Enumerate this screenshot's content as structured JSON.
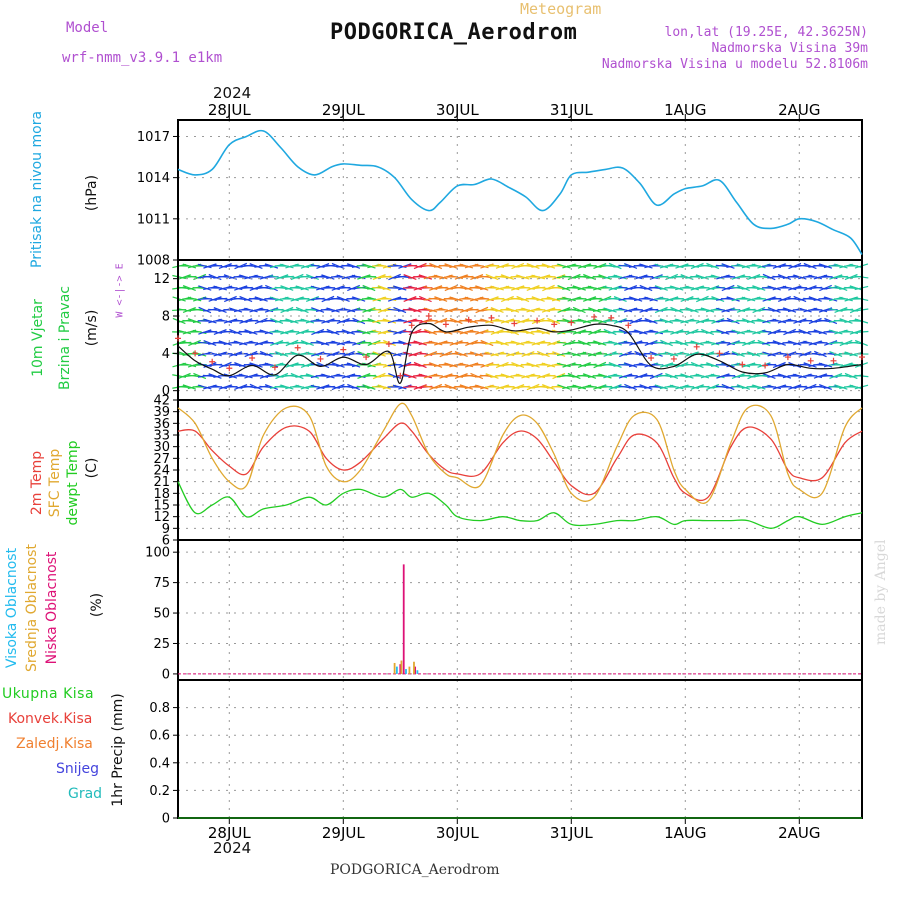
{
  "header": {
    "model_label": "Model",
    "model_name": "wrf-nmm_v3.9.1  e1km",
    "meteogram_label": "Meteogram",
    "station_title": "PODGORICA_Aerodrom",
    "lonlat": "lon,lat (19.25E, 42.3625N)",
    "altitude": "Nadmorska Visina 39m",
    "model_altitude": "Nadmorska Visina u modelu 52.8106m",
    "footer_station": "PODGORICA_Aerodrom",
    "credit": "made by Angel",
    "year": "2024"
  },
  "colors": {
    "pressure": "#1fa8e0",
    "temp2m": "#e8403a",
    "sfc_temp": "#e0a830",
    "dewpt": "#22cc22",
    "high_cloud": "#22bbee",
    "mid_cloud": "#e0a830",
    "low_cloud": "#dd1177",
    "model_text": "#b050d0"
  },
  "time_axis": {
    "start_day": 27.55,
    "end_day": 33.55,
    "labels": [
      {
        "t": 28.0,
        "label": "28JUL"
      },
      {
        "t": 29.0,
        "label": "29JUL"
      },
      {
        "t": 30.0,
        "label": "30JUL"
      },
      {
        "t": 31.0,
        "label": "31JUL"
      },
      {
        "t": 32.0,
        "label": "1AUG"
      },
      {
        "t": 33.0,
        "label": "2AUG"
      }
    ]
  },
  "panels": {
    "pressure": {
      "ylabel_1": "Pritisak na nivou mora",
      "unit": "(hPa)"
    },
    "wind": {
      "ylabel_1": "10m Vjetar",
      "ylabel_2": "Brzina i Pravac",
      "unit": "(m/s)",
      "compass": "W <-|-> E"
    },
    "temp": {
      "ylabel_1": "2m Temp",
      "ylabel_2": "SFC Temp",
      "ylabel_3": "dewpt Temp",
      "unit": "(C)"
    },
    "cloud": {
      "ylabel_1": "Visoka Oblacnost",
      "ylabel_2": "Srednja Oblacnost",
      "ylabel_3": "Niska Oblacnost",
      "unit": "(%)"
    },
    "precip": {
      "legend": [
        "Ukupna Kisa",
        "Konvek.Kisa",
        "Zaledj.Kisa",
        "Snijeg",
        "Grad"
      ],
      "legend_colors": [
        "#22cc22",
        "#e8403a",
        "#f08030",
        "#4444dd",
        "#22bbbb"
      ],
      "ylabel": "1hr Precip (mm)"
    }
  },
  "chart_data": [
    {
      "type": "line",
      "title": "Pritisak na nivou mora",
      "ylabel": "(hPa)",
      "ylim": [
        1008,
        1018.2
      ],
      "yticks": [
        1008,
        1011,
        1014,
        1017
      ],
      "grid": true,
      "x": [
        27.55,
        27.7,
        27.85,
        28.0,
        28.15,
        28.3,
        28.45,
        28.6,
        28.75,
        28.9,
        29.0,
        29.15,
        29.3,
        29.45,
        29.6,
        29.75,
        29.85,
        30.0,
        30.15,
        30.3,
        30.45,
        30.6,
        30.75,
        30.9,
        31.0,
        31.15,
        31.3,
        31.45,
        31.6,
        31.75,
        31.9,
        32.0,
        32.15,
        32.3,
        32.45,
        32.6,
        32.75,
        32.9,
        33.0,
        33.15,
        33.3,
        33.45,
        33.55
      ],
      "series": [
        {
          "values": [
            1014.6,
            1014.2,
            1014.6,
            1016.4,
            1017.0,
            1017.4,
            1016.2,
            1014.8,
            1014.2,
            1014.8,
            1015.0,
            1014.9,
            1014.8,
            1014.0,
            1012.4,
            1011.6,
            1012.2,
            1013.4,
            1013.5,
            1013.9,
            1013.3,
            1012.6,
            1011.6,
            1012.8,
            1014.2,
            1014.4,
            1014.6,
            1014.7,
            1013.6,
            1012.0,
            1012.8,
            1013.2,
            1013.4,
            1013.8,
            1012.2,
            1010.6,
            1010.3,
            1010.6,
            1011.0,
            1010.8,
            1010.2,
            1009.6,
            1008.4
          ]
        }
      ]
    },
    {
      "type": "line",
      "title": "10m Vjetar Brzina i Pravac",
      "ylabel": "(m/s)",
      "ylim": [
        -1,
        14
      ],
      "yticks": [
        0,
        4,
        8,
        12
      ],
      "grid": true,
      "x": [
        27.55,
        27.7,
        27.85,
        28.0,
        28.2,
        28.4,
        28.6,
        28.8,
        29.0,
        29.2,
        29.4,
        29.5,
        29.6,
        29.75,
        29.9,
        30.1,
        30.3,
        30.5,
        30.7,
        30.85,
        31.0,
        31.2,
        31.35,
        31.5,
        31.7,
        31.9,
        32.1,
        32.3,
        32.5,
        32.7,
        32.9,
        33.1,
        33.3,
        33.55
      ],
      "series": [
        {
          "values": [
            4.8,
            3.2,
            2.3,
            1.6,
            2.7,
            1.7,
            3.8,
            2.6,
            3.6,
            2.8,
            4.2,
            0.8,
            6.2,
            7.2,
            6.3,
            6.8,
            7.0,
            6.4,
            6.7,
            6.3,
            6.5,
            7.1,
            7.0,
            6.2,
            2.7,
            2.6,
            3.9,
            3.2,
            2.0,
            1.9,
            2.8,
            2.4,
            2.4,
            2.8
          ]
        }
      ],
      "wind_barb_colors": [
        "#1a40e0",
        "#7f2fd0",
        "#1ec8a0",
        "#22cc44",
        "#f0d020",
        "#f08020",
        "#e82040"
      ]
    },
    {
      "type": "line",
      "title": "2m Temp / SFC Temp / dewpt Temp",
      "ylabel": "(C)",
      "ylim": [
        6,
        42
      ],
      "yticks": [
        6,
        9,
        12,
        15,
        18,
        21,
        24,
        27,
        30,
        33,
        36,
        39,
        42
      ],
      "grid": true,
      "x": [
        27.55,
        27.7,
        27.85,
        28.0,
        28.15,
        28.3,
        28.5,
        28.7,
        28.85,
        29.0,
        29.15,
        29.35,
        29.5,
        29.6,
        29.75,
        29.9,
        30.0,
        30.2,
        30.4,
        30.55,
        30.7,
        30.85,
        31.0,
        31.2,
        31.4,
        31.55,
        31.75,
        31.9,
        32.0,
        32.2,
        32.4,
        32.55,
        32.75,
        32.9,
        33.0,
        33.2,
        33.4,
        33.55
      ],
      "series": [
        {
          "name": "2m Temp",
          "values": [
            34,
            34,
            29,
            25,
            23,
            30,
            35,
            34,
            27,
            24,
            26,
            32,
            36,
            34,
            28,
            24,
            23,
            23,
            31,
            34,
            32,
            26,
            20,
            18,
            27,
            33,
            31,
            22,
            18,
            17,
            30,
            35,
            32,
            24,
            22,
            22,
            31,
            34
          ]
        },
        {
          "name": "SFC Temp",
          "values": [
            40,
            36,
            27,
            21,
            20,
            33,
            40,
            38,
            25,
            21,
            24,
            34,
            41,
            38,
            28,
            23,
            22,
            20,
            33,
            38,
            36,
            28,
            18,
            17,
            30,
            38,
            37,
            24,
            19,
            16,
            31,
            40,
            38,
            23,
            19,
            18,
            35,
            40
          ]
        },
        {
          "name": "dewpt Temp",
          "values": [
            21,
            13,
            15,
            17,
            12,
            14,
            15,
            17,
            15,
            18,
            19,
            17,
            19,
            17,
            18,
            15,
            12,
            11,
            12,
            11,
            11,
            13,
            10,
            10,
            11,
            11,
            12,
            10,
            11,
            11,
            11,
            11,
            9,
            11,
            12,
            10,
            12,
            13
          ]
        }
      ]
    },
    {
      "type": "bar",
      "title": "Visoka / Srednja / Niska Oblacnost",
      "ylabel": "(%)",
      "ylim": [
        -5,
        110
      ],
      "yticks": [
        0,
        25,
        50,
        75,
        100
      ],
      "grid": true,
      "series": [
        {
          "name": "Niska Oblacnost",
          "points": [
            {
              "x": 29.53,
              "value": 90
            },
            {
              "x": 29.5,
              "value": 8
            },
            {
              "x": 29.63,
              "value": 6
            }
          ]
        },
        {
          "name": "Srednja Oblacnost",
          "points": [
            {
              "x": 29.45,
              "value": 9
            },
            {
              "x": 29.51,
              "value": 11
            },
            {
              "x": 29.58,
              "value": 6
            },
            {
              "x": 29.62,
              "value": 10
            }
          ]
        },
        {
          "name": "Visoka Oblacnost",
          "points": [
            {
              "x": 29.47,
              "value": 6
            },
            {
              "x": 29.55,
              "value": 4
            },
            {
              "x": 29.65,
              "value": 3
            }
          ]
        }
      ]
    },
    {
      "type": "line",
      "title": "1hr Precip",
      "ylabel": "1hr Precip (mm)",
      "ylim": [
        0,
        1
      ],
      "yticks": [
        0,
        0.2,
        0.4,
        0.6,
        0.8
      ],
      "grid": true,
      "series": [
        {
          "name": "Ukupna Kisa",
          "values": [
            0,
            0
          ]
        }
      ]
    }
  ]
}
